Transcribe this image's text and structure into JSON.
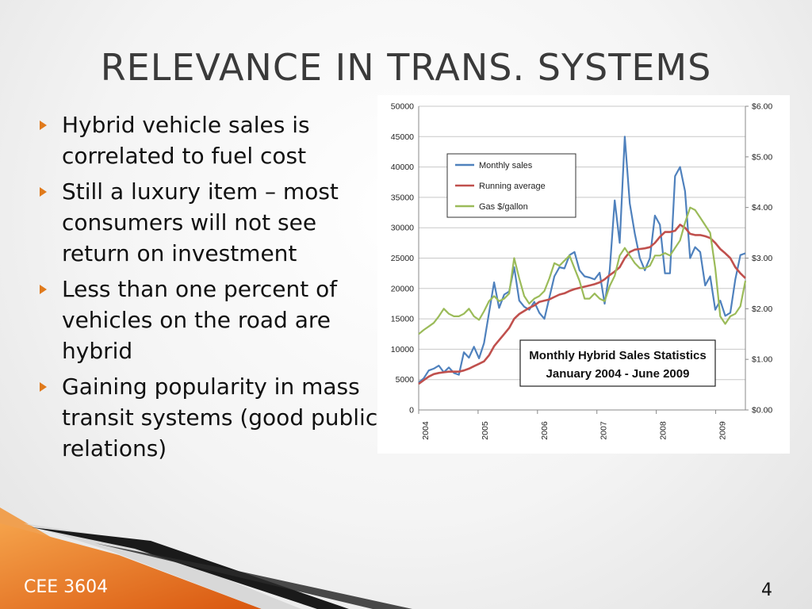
{
  "slide": {
    "title": "RELEVANCE IN TRANS. SYSTEMS",
    "bullets": [
      "Hybrid vehicle sales is correlated to fuel cost",
      "Still a luxury item – most consumers will not see  return on investment",
      "Less than one percent of vehicles on the road are hybrid",
      "Gaining popularity in mass transit systems (good public relations)"
    ],
    "footer": "CEE 3604",
    "page_number": "4",
    "accent_color": "#e07a1c"
  },
  "chart_data": {
    "type": "line",
    "title": "Monthly Hybrid Sales Statistics",
    "subtitle": "January 2004 - June 2009",
    "xlabel": "",
    "ylabel": "",
    "x_ticks": [
      "2004",
      "2005",
      "2006",
      "2007",
      "2008",
      "2009"
    ],
    "xlim": [
      2004.0,
      2009.5
    ],
    "ylim_left": [
      0,
      50000
    ],
    "y_ticks_left": [
      "0",
      "5000",
      "10000",
      "15000",
      "20000",
      "25000",
      "30000",
      "35000",
      "40000",
      "45000",
      "50000"
    ],
    "ylim_right": [
      0,
      6
    ],
    "y_ticks_right": [
      "$0.00",
      "$1.00",
      "$2.00",
      "$3.00",
      "$4.00",
      "$5.00",
      "$6.00"
    ],
    "grid": "horizontal",
    "legend_position": "top-left",
    "series": [
      {
        "name": "Monthly sales",
        "axis": "left",
        "color": "#4f81bd",
        "values": [
          4500,
          5200,
          6500,
          6800,
          7300,
          6200,
          7000,
          6100,
          5800,
          9500,
          8600,
          10400,
          8500,
          11000,
          16000,
          21000,
          16800,
          19000,
          19500,
          23500,
          18000,
          17000,
          16500,
          17800,
          16000,
          15000,
          18500,
          22000,
          23500,
          23300,
          25500,
          26000,
          23000,
          22000,
          21800,
          21500,
          22600,
          17500,
          23000,
          34500,
          27500,
          45000,
          34000,
          29000,
          25000,
          23000,
          25000,
          32000,
          30500,
          22500,
          22500,
          38500,
          40000,
          36000,
          25000,
          26800,
          26000,
          20500,
          22000,
          16500,
          18000,
          15500,
          16000,
          21500,
          25500,
          25800
        ]
      },
      {
        "name": "Running average",
        "axis": "left",
        "color": "#c0504d",
        "values": [
          4300,
          4900,
          5500,
          5900,
          6100,
          6200,
          6300,
          6300,
          6300,
          6500,
          6800,
          7200,
          7600,
          8000,
          9000,
          10500,
          11500,
          12500,
          13500,
          15000,
          15800,
          16300,
          16800,
          17200,
          17800,
          18000,
          18200,
          18600,
          19000,
          19200,
          19600,
          19900,
          20100,
          20300,
          20500,
          20700,
          21000,
          21500,
          22200,
          22800,
          23500,
          25000,
          26000,
          26400,
          26500,
          26600,
          26800,
          27500,
          28500,
          29300,
          29300,
          29500,
          30500,
          30000,
          29000,
          28800,
          28800,
          28600,
          28300,
          27500,
          26500,
          25800,
          25000,
          23500,
          22500,
          21700
        ]
      },
      {
        "name": "Gas $/gallon",
        "axis": "right",
        "color": "#9bbb59",
        "values": [
          1.5,
          1.58,
          1.65,
          1.72,
          1.85,
          2.0,
          1.9,
          1.85,
          1.85,
          1.9,
          2.0,
          1.85,
          1.78,
          1.95,
          2.15,
          2.25,
          2.15,
          2.2,
          2.3,
          3.0,
          2.6,
          2.25,
          2.1,
          2.2,
          2.25,
          2.35,
          2.6,
          2.9,
          2.85,
          2.95,
          3.05,
          2.8,
          2.55,
          2.2,
          2.2,
          2.3,
          2.2,
          2.15,
          2.45,
          2.65,
          3.05,
          3.2,
          3.05,
          2.9,
          2.8,
          2.8,
          2.85,
          3.05,
          3.05,
          3.1,
          3.05,
          3.2,
          3.35,
          3.7,
          4.0,
          3.95,
          3.8,
          3.65,
          3.5,
          2.8,
          1.85,
          1.7,
          1.85,
          1.9,
          2.05,
          2.55
        ]
      }
    ]
  }
}
